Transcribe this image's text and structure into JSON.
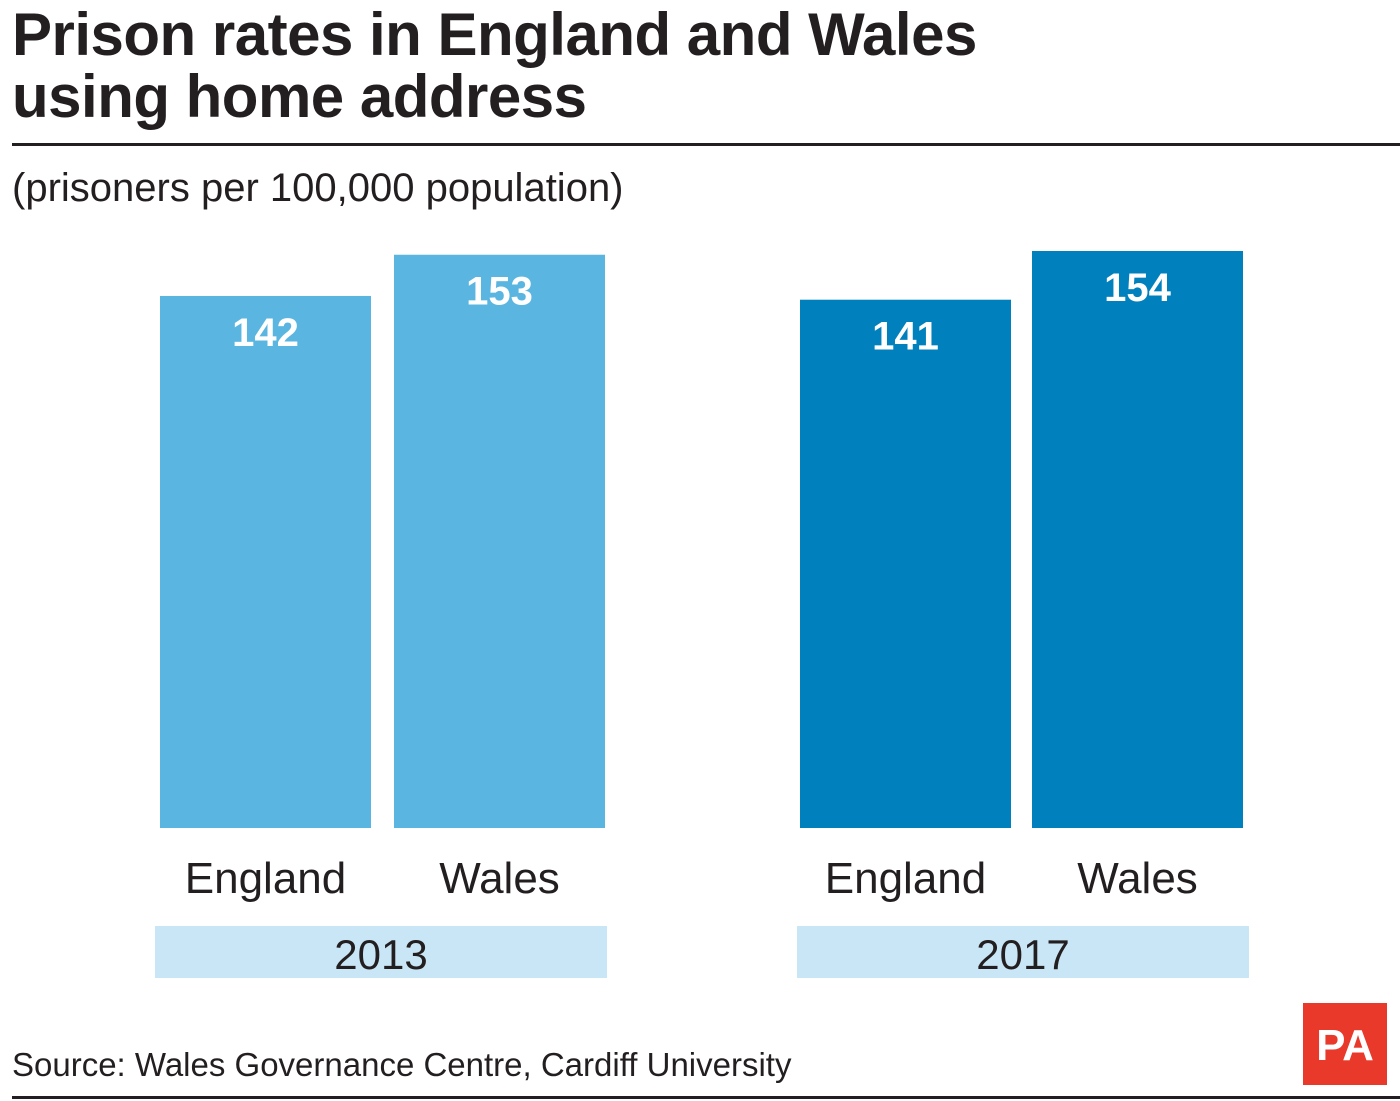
{
  "title_line1": "Prison rates in England and Wales",
  "title_line2": "using home address",
  "subtitle": "(prisoners per 100,000 population)",
  "source": "Source: Wales Governance Centre, Cardiff University",
  "logo": {
    "text": "PA",
    "color": "#e8392b"
  },
  "colors": {
    "series_2013": "#5ab6e0",
    "series_2017": "#0081bd",
    "group_label_bg": "#c8e6f6",
    "value_label": "#ffffff"
  },
  "chart_data": {
    "type": "bar",
    "groups": [
      {
        "label": "2013",
        "categories": [
          "England",
          "Wales"
        ],
        "values": [
          142,
          153
        ]
      },
      {
        "label": "2017",
        "categories": [
          "England",
          "Wales"
        ],
        "values": [
          141,
          154
        ]
      }
    ],
    "ylim": [
      0,
      154
    ],
    "grid": false,
    "legend": "none"
  }
}
